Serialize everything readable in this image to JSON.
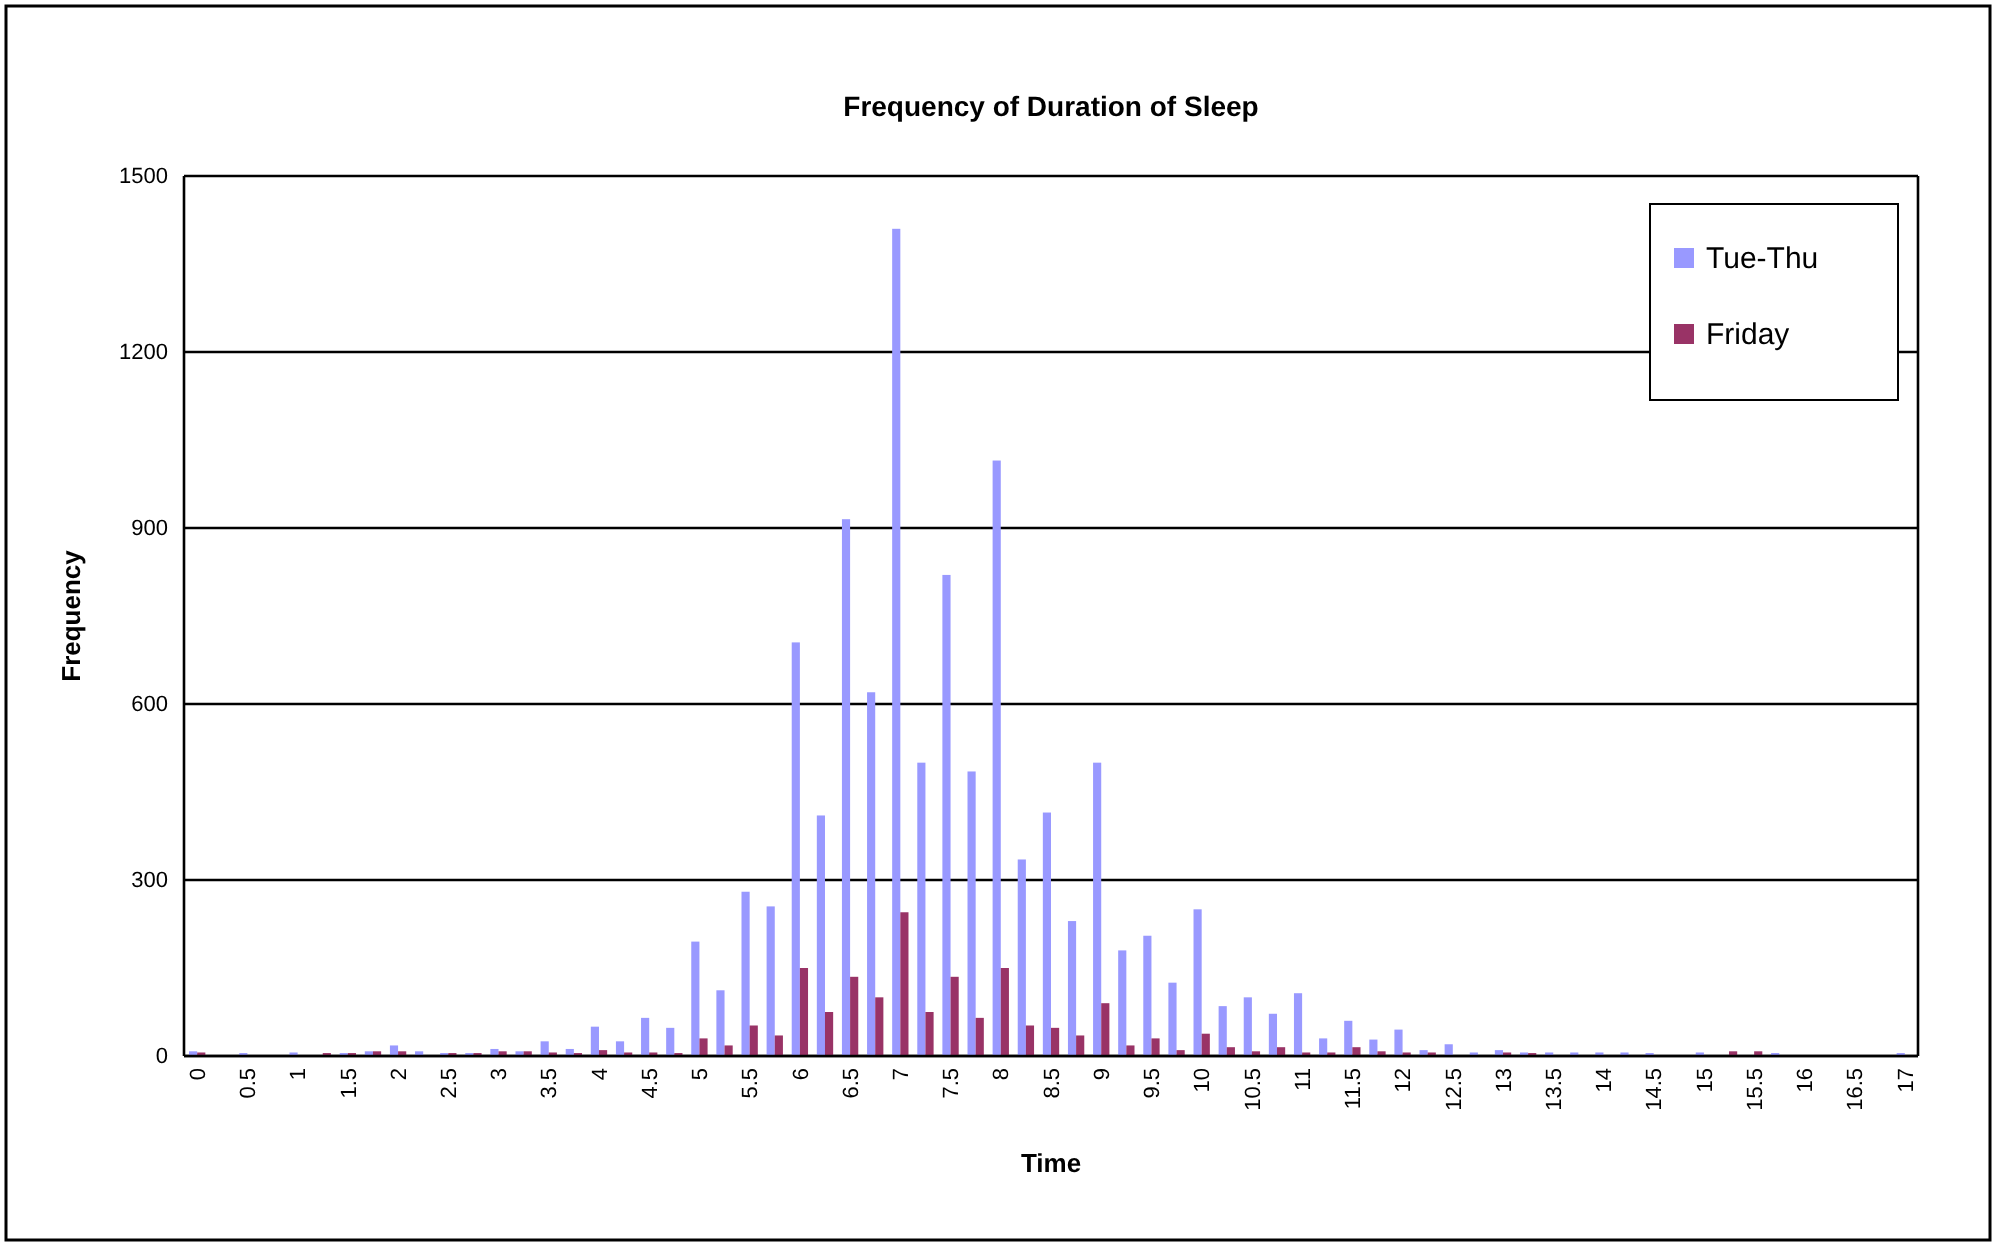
{
  "chart_data": {
    "type": "bar",
    "title": "Frequency of Duration of Sleep",
    "xlabel": "Time",
    "ylabel": "Frequency",
    "categories": [
      "0",
      null,
      "0.5",
      null,
      "1",
      null,
      "1.5",
      null,
      "2",
      null,
      "2.5",
      null,
      "3",
      null,
      "3.5",
      null,
      "4",
      null,
      "4.5",
      null,
      "5",
      null,
      "5.5",
      null,
      "6",
      null,
      "6.5",
      null,
      "7",
      null,
      "7.5",
      null,
      "8",
      null,
      "8.5",
      null,
      "9",
      null,
      "9.5",
      null,
      "10",
      null,
      "10.5",
      null,
      "11",
      null,
      "11.5",
      null,
      "12",
      null,
      "12.5",
      null,
      "13",
      null,
      "13.5",
      null,
      "14",
      null,
      "14.5",
      null,
      "15",
      null,
      "15.5",
      null,
      "16",
      null,
      "16.5",
      null,
      "17"
    ],
    "series": [
      {
        "name": "Tue-Thu",
        "color": "#9999ff",
        "values": [
          8,
          0,
          5,
          0,
          6,
          0,
          5,
          8,
          18,
          8,
          5,
          5,
          12,
          8,
          25,
          12,
          50,
          25,
          65,
          48,
          195,
          112,
          280,
          255,
          705,
          410,
          915,
          620,
          1410,
          500,
          820,
          485,
          1015,
          335,
          415,
          230,
          500,
          180,
          205,
          125,
          250,
          85,
          100,
          72,
          107,
          30,
          60,
          28,
          45,
          10,
          20,
          6,
          10,
          6,
          6,
          6,
          6,
          6,
          5,
          0,
          6,
          0,
          0,
          5,
          0,
          0,
          0,
          0,
          5
        ]
      },
      {
        "name": "Friday",
        "color": "#993366",
        "values": [
          6,
          0,
          0,
          0,
          0,
          5,
          5,
          8,
          8,
          0,
          5,
          5,
          8,
          8,
          6,
          5,
          10,
          6,
          6,
          5,
          30,
          18,
          52,
          35,
          150,
          75,
          135,
          100,
          245,
          75,
          135,
          65,
          150,
          52,
          48,
          35,
          90,
          18,
          30,
          10,
          38,
          15,
          8,
          15,
          6,
          6,
          15,
          8,
          6,
          6,
          0,
          0,
          6,
          5,
          0,
          0,
          0,
          0,
          0,
          0,
          0,
          8,
          8,
          0,
          0,
          0,
          0,
          0,
          0
        ]
      }
    ],
    "ylim": [
      0,
      1500
    ],
    "yticks": [
      0,
      300,
      600,
      900,
      1200,
      1500
    ],
    "grid": "y",
    "legend": "top right"
  }
}
